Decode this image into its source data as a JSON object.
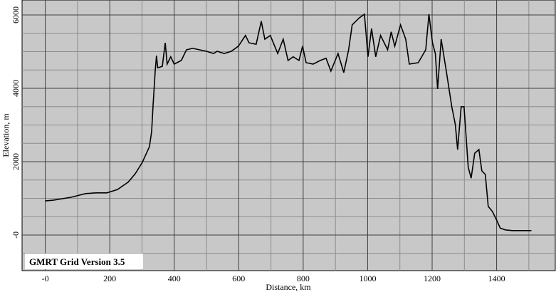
{
  "chart_data": {
    "type": "line",
    "annotation": "GMRT Grid Version 3.5",
    "xlabel": "Distance, km",
    "ylabel": "Elevation, m",
    "x": [
      0,
      25,
      80,
      125,
      158,
      191,
      224,
      257,
      279,
      301,
      323,
      330,
      334,
      341,
      345,
      349,
      363,
      372,
      378,
      389,
      400,
      422,
      438,
      457,
      478,
      500,
      522,
      533,
      555,
      577,
      599,
      621,
      632,
      654,
      670,
      681,
      698,
      721,
      738,
      753,
      769,
      787,
      798,
      809,
      831,
      853,
      871,
      886,
      908,
      926,
      941,
      952,
      974,
      990,
      1001,
      1012,
      1025,
      1040,
      1062,
      1073,
      1084,
      1102,
      1118,
      1129,
      1157,
      1180,
      1190,
      1201,
      1210,
      1217,
      1228,
      1244,
      1261,
      1272,
      1279,
      1290,
      1299,
      1305,
      1312,
      1321,
      1332,
      1345,
      1354,
      1365,
      1374,
      1387,
      1401,
      1411,
      1427,
      1449,
      1508
    ],
    "series": [
      {
        "color": "#000000",
        "values": [
          930,
          950,
          1030,
          1130,
          1150,
          1150,
          1240,
          1440,
          1670,
          1980,
          2410,
          2820,
          3500,
          4470,
          4890,
          4560,
          4600,
          5240,
          4660,
          4860,
          4660,
          4760,
          5050,
          5090,
          5050,
          5010,
          4950,
          5010,
          4950,
          5010,
          5150,
          5440,
          5240,
          5200,
          5830,
          5340,
          5440,
          4950,
          5340,
          4760,
          4860,
          4760,
          5150,
          4700,
          4660,
          4760,
          4820,
          4470,
          4950,
          4430,
          5050,
          5730,
          5920,
          6020,
          4860,
          5630,
          4860,
          5440,
          5050,
          5540,
          5150,
          5730,
          5340,
          4660,
          4700,
          5050,
          6020,
          5240,
          4950,
          3980,
          5340,
          4470,
          3500,
          3010,
          2330,
          3500,
          3500,
          2720,
          1850,
          1550,
          2230,
          2330,
          1750,
          1650,
          780,
          640,
          390,
          190,
          140,
          120,
          120
        ]
      }
    ],
    "xlim": [
      -72,
      1582
    ],
    "ylim": [
      -971,
      6408
    ],
    "xticks": [
      {
        "value": 0,
        "label": "-0"
      },
      200,
      400,
      600,
      800,
      1000,
      1200,
      1400
    ],
    "yticks": [
      {
        "value": 0,
        "label": "-0"
      },
      2000,
      4000,
      6000
    ],
    "xminorticks": [
      100,
      300,
      500,
      700,
      900,
      1100,
      1300,
      1500
    ],
    "yminorticks": [
      -500,
      500,
      1000,
      1500,
      2500,
      3000,
      3500,
      4500,
      5000,
      5500
    ],
    "grid": true
  }
}
